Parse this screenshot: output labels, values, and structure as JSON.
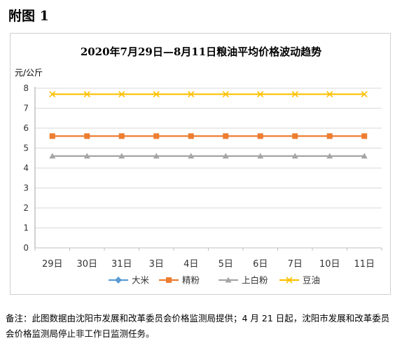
{
  "figure_label": "附图 1",
  "note": "备注：此图数据由沈阳市发展和改革委员会价格监测局提供；4 月 21 日起，沈阳市发展和改革委员会价格监测局停止非工作日监测任务。",
  "chart_data": {
    "type": "line",
    "title": "2020年7月29日—8月11日粮油平均价格波动趋势",
    "ylabel": "元/公斤",
    "xlabel": "",
    "ylim": [
      0,
      8
    ],
    "yticks": [
      "0",
      "1",
      "2",
      "3",
      "4",
      "5",
      "6",
      "7",
      "8"
    ],
    "grid": "horizontal",
    "legend_position": "bottom",
    "categories": [
      "29日",
      "30日",
      "31日",
      "3日",
      "4日",
      "5日",
      "6日",
      "7日",
      "10日",
      "11日"
    ],
    "legend": [
      {
        "name": "大米",
        "color": "#5B9BD5",
        "marker": "diamond"
      },
      {
        "name": "精粉",
        "color": "#ED7D31",
        "marker": "square"
      },
      {
        "name": "上白粉",
        "color": "#A5A5A5",
        "marker": "triangle"
      },
      {
        "name": "豆油",
        "color": "#FFC000",
        "marker": "x"
      }
    ],
    "series": [
      {
        "name": "精粉",
        "color": "#ED7D31",
        "marker": "square",
        "values": [
          5.6,
          5.6,
          5.6,
          5.6,
          5.6,
          5.6,
          5.6,
          5.6,
          5.6,
          5.6
        ]
      },
      {
        "name": "上白粉",
        "color": "#A5A5A5",
        "marker": "triangle",
        "values": [
          4.6,
          4.6,
          4.6,
          4.6,
          4.6,
          4.6,
          4.6,
          4.6,
          4.6,
          4.6
        ]
      },
      {
        "name": "豆油",
        "color": "#FFC000",
        "marker": "x",
        "values": [
          7.7,
          7.7,
          7.7,
          7.7,
          7.7,
          7.7,
          7.7,
          7.7,
          7.7,
          7.7
        ]
      }
    ]
  }
}
